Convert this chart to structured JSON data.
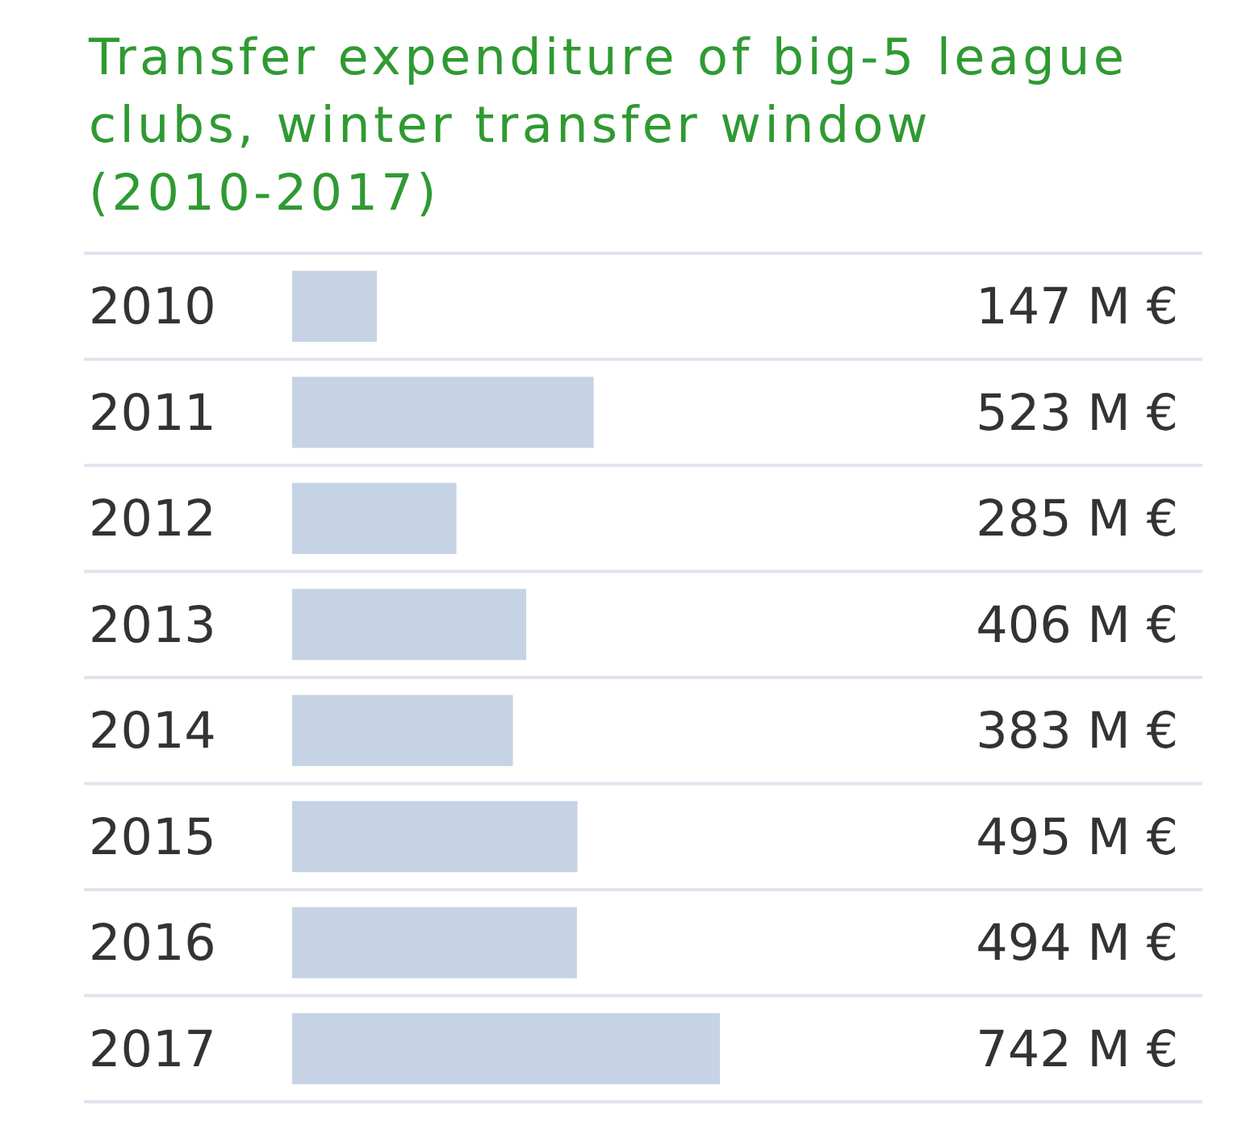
{
  "chart_data": {
    "type": "bar",
    "orientation": "horizontal",
    "title": "Transfer expenditure of big-5 league clubs, winter transfer window (2010-2017)",
    "categories": [
      "2010",
      "2011",
      "2012",
      "2013",
      "2014",
      "2015",
      "2016",
      "2017"
    ],
    "values": [
      147,
      523,
      285,
      406,
      383,
      495,
      494,
      742
    ],
    "value_labels": [
      "147 M €",
      "523 M €",
      "285 M €",
      "406 M €",
      "383 M €",
      "495 M €",
      "494 M €",
      "742 M €"
    ],
    "color": "#c5d3e4"
  }
}
